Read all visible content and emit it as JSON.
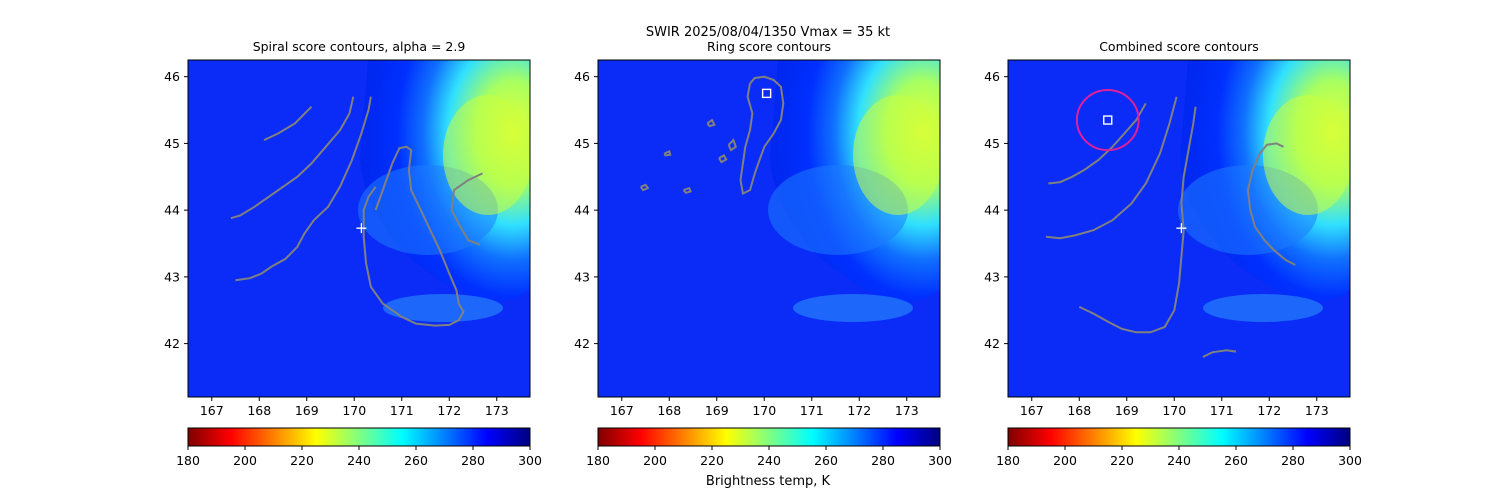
{
  "suptitle": "SWIR  2025/08/04/1350    Vmax = 35 kt",
  "colorbar_label": "Brightness temp, K",
  "colorbar_ticks": [
    180,
    200,
    220,
    240,
    260,
    280,
    300
  ],
  "colormap_stops": [
    "#7f0000",
    "#ff0000",
    "#ff8000",
    "#ffff00",
    "#80ff80",
    "#00ffff",
    "#0080ff",
    "#0000ff",
    "#00007f"
  ],
  "xlim": [
    166.5,
    173.7
  ],
  "ylim": [
    41.2,
    46.25
  ],
  "xticks": [
    167,
    168,
    169,
    170,
    171,
    172,
    173
  ],
  "yticks": [
    42,
    43,
    44,
    45,
    46
  ],
  "colors": {
    "contour": "#808080",
    "marker": "#ffffff",
    "circle": "#e0209a"
  },
  "chart_data": [
    {
      "type": "heatmap",
      "title": "Spiral score contours, alpha =  2.9",
      "center_marker": [
        170.15,
        43.73
      ],
      "contours": [
        [
          [
            168.1,
            45.05
          ],
          [
            168.4,
            45.15
          ],
          [
            168.75,
            45.3
          ],
          [
            169.1,
            45.55
          ]
        ],
        [
          [
            167.4,
            43.88
          ],
          [
            167.6,
            43.92
          ],
          [
            167.9,
            44.05
          ],
          [
            168.2,
            44.2
          ],
          [
            168.5,
            44.35
          ],
          [
            168.8,
            44.5
          ],
          [
            169.1,
            44.7
          ],
          [
            169.4,
            44.95
          ],
          [
            169.7,
            45.2
          ],
          [
            169.9,
            45.45
          ],
          [
            169.98,
            45.7
          ]
        ],
        [
          [
            167.5,
            42.95
          ],
          [
            167.8,
            42.98
          ],
          [
            168.05,
            43.05
          ],
          [
            168.25,
            43.15
          ],
          [
            168.55,
            43.27
          ],
          [
            168.8,
            43.45
          ],
          [
            168.95,
            43.65
          ],
          [
            169.15,
            43.85
          ],
          [
            169.45,
            44.05
          ],
          [
            169.7,
            44.35
          ],
          [
            169.95,
            44.75
          ],
          [
            170.15,
            45.15
          ],
          [
            170.3,
            45.5
          ],
          [
            170.35,
            45.7
          ]
        ],
        [
          [
            170.45,
            44.0
          ],
          [
            170.6,
            44.3
          ],
          [
            170.8,
            44.7
          ],
          [
            170.95,
            44.93
          ],
          [
            171.1,
            44.95
          ],
          [
            171.2,
            44.9
          ],
          [
            171.15,
            44.6
          ],
          [
            171.2,
            44.3
          ],
          [
            171.4,
            44.0
          ],
          [
            171.6,
            43.7
          ],
          [
            171.8,
            43.4
          ],
          [
            172.0,
            43.05
          ],
          [
            172.15,
            42.8
          ],
          [
            172.2,
            42.6
          ],
          [
            172.3,
            42.48
          ],
          [
            172.2,
            42.35
          ],
          [
            172.0,
            42.28
          ],
          [
            171.7,
            42.27
          ],
          [
            171.3,
            42.3
          ],
          [
            171.0,
            42.4
          ],
          [
            170.6,
            42.6
          ],
          [
            170.35,
            42.85
          ],
          [
            170.25,
            43.2
          ],
          [
            170.2,
            43.6
          ],
          [
            170.2,
            44.0
          ],
          [
            170.3,
            44.2
          ],
          [
            170.45,
            44.35
          ]
        ],
        [
          [
            172.7,
            44.55
          ],
          [
            172.4,
            44.45
          ],
          [
            172.1,
            44.3
          ],
          [
            172.05,
            44.0
          ],
          [
            172.2,
            43.8
          ],
          [
            172.4,
            43.55
          ],
          [
            172.65,
            43.48
          ]
        ]
      ]
    },
    {
      "type": "heatmap",
      "title": "Ring score contours",
      "square_marker": [
        170.05,
        45.75
      ],
      "contours": [
        [
          [
            169.7,
            45.9
          ],
          [
            169.65,
            45.7
          ],
          [
            169.75,
            45.45
          ],
          [
            169.7,
            45.2
          ],
          [
            169.6,
            44.95
          ],
          [
            169.55,
            44.7
          ],
          [
            169.5,
            44.45
          ],
          [
            169.55,
            44.25
          ],
          [
            169.7,
            44.3
          ],
          [
            169.8,
            44.55
          ],
          [
            169.9,
            44.75
          ],
          [
            170.0,
            44.95
          ],
          [
            170.2,
            45.15
          ],
          [
            170.35,
            45.35
          ],
          [
            170.4,
            45.6
          ],
          [
            170.35,
            45.85
          ],
          [
            170.2,
            45.95
          ],
          [
            170.0,
            46.0
          ],
          [
            169.8,
            45.98
          ],
          [
            169.7,
            45.9
          ]
        ],
        [
          [
            169.25,
            44.98
          ],
          [
            169.35,
            45.05
          ],
          [
            169.4,
            44.95
          ],
          [
            169.3,
            44.9
          ],
          [
            169.25,
            44.98
          ]
        ],
        [
          [
            169.05,
            44.78
          ],
          [
            169.15,
            44.82
          ],
          [
            169.2,
            44.76
          ],
          [
            169.1,
            44.72
          ],
          [
            169.05,
            44.78
          ]
        ],
        [
          [
            168.8,
            45.3
          ],
          [
            168.9,
            45.35
          ],
          [
            168.95,
            45.28
          ],
          [
            168.85,
            45.26
          ],
          [
            168.8,
            45.3
          ]
        ],
        [
          [
            168.3,
            44.3
          ],
          [
            168.42,
            44.33
          ],
          [
            168.45,
            44.28
          ],
          [
            168.35,
            44.26
          ],
          [
            168.3,
            44.3
          ]
        ],
        [
          [
            167.4,
            44.35
          ],
          [
            167.5,
            44.38
          ],
          [
            167.55,
            44.33
          ],
          [
            167.45,
            44.3
          ],
          [
            167.4,
            44.35
          ]
        ],
        [
          [
            167.9,
            44.85
          ],
          [
            168.0,
            44.88
          ],
          [
            168.02,
            44.83
          ],
          [
            167.92,
            44.82
          ],
          [
            167.9,
            44.85
          ]
        ]
      ]
    },
    {
      "type": "heatmap",
      "title": "Combined score contours",
      "center_marker": [
        170.15,
        43.73
      ],
      "square_marker": [
        168.6,
        45.35
      ],
      "circle": {
        "center": [
          168.6,
          45.35
        ],
        "radius_x": 0.65,
        "radius_y": 0.45
      },
      "contours": [
        [
          [
            167.35,
            44.4
          ],
          [
            167.6,
            44.42
          ],
          [
            167.85,
            44.5
          ],
          [
            168.1,
            44.6
          ],
          [
            168.4,
            44.75
          ],
          [
            168.7,
            44.95
          ],
          [
            168.95,
            45.15
          ],
          [
            169.2,
            45.35
          ],
          [
            169.4,
            45.6
          ]
        ],
        [
          [
            167.3,
            43.6
          ],
          [
            167.6,
            43.58
          ],
          [
            167.9,
            43.62
          ],
          [
            168.3,
            43.7
          ],
          [
            168.7,
            43.85
          ],
          [
            169.1,
            44.1
          ],
          [
            169.4,
            44.4
          ],
          [
            169.7,
            44.85
          ],
          [
            169.9,
            45.3
          ],
          [
            170.05,
            45.7
          ]
        ],
        [
          [
            168.0,
            42.55
          ],
          [
            168.3,
            42.45
          ],
          [
            168.6,
            42.33
          ],
          [
            168.9,
            42.22
          ],
          [
            169.2,
            42.17
          ],
          [
            169.5,
            42.17
          ],
          [
            169.8,
            42.25
          ],
          [
            170.0,
            42.5
          ],
          [
            170.1,
            42.9
          ],
          [
            170.15,
            43.3
          ],
          [
            170.2,
            43.7
          ],
          [
            170.15,
            44.1
          ],
          [
            170.2,
            44.5
          ],
          [
            170.3,
            44.9
          ],
          [
            170.4,
            45.3
          ],
          [
            170.45,
            45.55
          ]
        ],
        [
          [
            170.6,
            41.8
          ],
          [
            170.8,
            41.87
          ],
          [
            171.1,
            41.9
          ],
          [
            171.3,
            41.88
          ]
        ],
        [
          [
            172.3,
            44.95
          ],
          [
            172.15,
            45.0
          ],
          [
            171.95,
            44.98
          ],
          [
            171.8,
            44.85
          ],
          [
            171.65,
            44.6
          ],
          [
            171.55,
            44.3
          ],
          [
            171.6,
            44.0
          ],
          [
            171.7,
            43.75
          ],
          [
            171.9,
            43.55
          ],
          [
            172.1,
            43.4
          ],
          [
            172.35,
            43.25
          ],
          [
            172.55,
            43.18
          ]
        ]
      ]
    }
  ]
}
